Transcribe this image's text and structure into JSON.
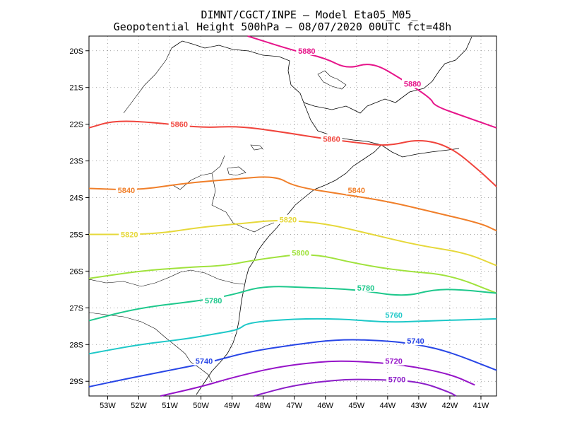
{
  "chart_data": {
    "type": "contour",
    "title_line1": "DIMNT/CGCT/INPE –  Model Eta05_M05_",
    "title_line2": "Geopotential Height 500hPa –  08/07/2020 00UTC fct=48h",
    "x_ticks": [
      "53W",
      "52W",
      "51W",
      "50W",
      "49W",
      "48W",
      "47W",
      "46W",
      "45W",
      "44W",
      "43W",
      "42W",
      "41W"
    ],
    "y_ticks": [
      "20S",
      "21S",
      "22S",
      "23S",
      "24S",
      "25S",
      "26S",
      "27S",
      "28S",
      "29S"
    ],
    "lon_range": [
      -53.6,
      -40.5
    ],
    "lat_range": [
      -29.4,
      -19.6
    ],
    "grid": true,
    "contours": [
      {
        "level": 5880,
        "color": "#e6158a",
        "points": [
          [
            -48.5,
            -19.6
          ],
          [
            -47.0,
            -20.0
          ],
          [
            -46.0,
            -20.2
          ],
          [
            -45.3,
            -20.5
          ],
          [
            -44.5,
            -20.3
          ],
          [
            -43.5,
            -20.8
          ],
          [
            -42.6,
            -21.3
          ],
          [
            -42.5,
            -21.5
          ],
          [
            -41.5,
            -21.8
          ],
          [
            -40.5,
            -22.1
          ]
        ],
        "labels": [
          {
            "text": "5880",
            "lon": -46.6,
            "lat": -20.0
          },
          {
            "text": "5880",
            "lon": -43.2,
            "lat": -20.9
          }
        ]
      },
      {
        "level": 5860,
        "color": "#f0443c",
        "points": [
          [
            -53.6,
            -22.1
          ],
          [
            -52.8,
            -21.9
          ],
          [
            -51.5,
            -21.95
          ],
          [
            -50.0,
            -22.1
          ],
          [
            -48.8,
            -22.05
          ],
          [
            -47.5,
            -22.2
          ],
          [
            -46.0,
            -22.4
          ],
          [
            -45.0,
            -22.5
          ],
          [
            -44.0,
            -22.6
          ],
          [
            -43.0,
            -22.4
          ],
          [
            -42.0,
            -22.6
          ],
          [
            -41.0,
            -23.3
          ],
          [
            -40.5,
            -23.7
          ]
        ],
        "labels": [
          {
            "text": "5860",
            "lon": -50.7,
            "lat": -22.0
          },
          {
            "text": "5860",
            "lon": -45.8,
            "lat": -22.4
          }
        ]
      },
      {
        "level": 5840,
        "color": "#f07f2a",
        "points": [
          [
            -53.6,
            -23.75
          ],
          [
            -52.0,
            -23.8
          ],
          [
            -50.5,
            -23.6
          ],
          [
            -49.0,
            -23.5
          ],
          [
            -47.6,
            -23.4
          ],
          [
            -47.0,
            -23.7
          ],
          [
            -45.5,
            -23.9
          ],
          [
            -44.0,
            -24.1
          ],
          [
            -42.5,
            -24.4
          ],
          [
            -41.0,
            -24.7
          ],
          [
            -40.5,
            -24.9
          ]
        ],
        "labels": [
          {
            "text": "5840",
            "lon": -52.4,
            "lat": -23.8
          },
          {
            "text": "5840",
            "lon": -45.0,
            "lat": -23.8
          }
        ]
      },
      {
        "level": 5820,
        "color": "#e6d83a",
        "points": [
          [
            -53.6,
            -25.0
          ],
          [
            -51.5,
            -25.0
          ],
          [
            -50.0,
            -24.8
          ],
          [
            -48.6,
            -24.7
          ],
          [
            -47.5,
            -24.6
          ],
          [
            -46.0,
            -24.7
          ],
          [
            -44.5,
            -25.0
          ],
          [
            -43.0,
            -25.3
          ],
          [
            -41.5,
            -25.5
          ],
          [
            -40.5,
            -25.85
          ]
        ],
        "labels": [
          {
            "text": "5820",
            "lon": -52.3,
            "lat": -25.0
          },
          {
            "text": "5820",
            "lon": -47.2,
            "lat": -24.6
          }
        ]
      },
      {
        "level": 5800,
        "color": "#a0e23c",
        "points": [
          [
            -53.6,
            -26.2
          ],
          [
            -52.0,
            -26.0
          ],
          [
            -50.5,
            -25.9
          ],
          [
            -49.2,
            -25.85
          ],
          [
            -48.3,
            -25.7
          ],
          [
            -46.5,
            -25.5
          ],
          [
            -45.0,
            -25.8
          ],
          [
            -43.5,
            -26.0
          ],
          [
            -42.0,
            -26.1
          ],
          [
            -40.5,
            -26.6
          ]
        ],
        "labels": [
          {
            "text": "5800",
            "lon": -46.8,
            "lat": -25.5
          }
        ]
      },
      {
        "level": 5780,
        "color": "#1ec88c",
        "points": [
          [
            -53.6,
            -27.35
          ],
          [
            -52.0,
            -27.0
          ],
          [
            -50.0,
            -26.8
          ],
          [
            -49.0,
            -26.65
          ],
          [
            -48.0,
            -26.4
          ],
          [
            -46.5,
            -26.45
          ],
          [
            -45.0,
            -26.5
          ],
          [
            -43.5,
            -26.7
          ],
          [
            -42.5,
            -26.5
          ],
          [
            -41.7,
            -26.5
          ],
          [
            -40.5,
            -26.6
          ]
        ],
        "labels": [
          {
            "text": "5780",
            "lon": -49.6,
            "lat": -26.8
          },
          {
            "text": "5780",
            "lon": -44.7,
            "lat": -26.45
          }
        ]
      },
      {
        "level": 5760,
        "color": "#1ec8c8",
        "points": [
          [
            -53.6,
            -28.25
          ],
          [
            -52.0,
            -28.0
          ],
          [
            -50.5,
            -27.85
          ],
          [
            -49.5,
            -27.7
          ],
          [
            -48.8,
            -27.6
          ],
          [
            -48.5,
            -27.4
          ],
          [
            -47.0,
            -27.3
          ],
          [
            -45.5,
            -27.3
          ],
          [
            -44.0,
            -27.4
          ],
          [
            -42.5,
            -27.35
          ],
          [
            -40.5,
            -27.3
          ]
        ],
        "labels": [
          {
            "text": "5760",
            "lon": -43.8,
            "lat": -27.2
          }
        ]
      },
      {
        "level": 5740,
        "color": "#2846e6",
        "points": [
          [
            -53.6,
            -29.15
          ],
          [
            -52.5,
            -28.95
          ],
          [
            -51.0,
            -28.7
          ],
          [
            -49.8,
            -28.5
          ],
          [
            -48.5,
            -28.2
          ],
          [
            -47.0,
            -28.0
          ],
          [
            -45.5,
            -27.85
          ],
          [
            -44.0,
            -27.9
          ],
          [
            -43.0,
            -28.0
          ],
          [
            -42.0,
            -28.2
          ],
          [
            -40.5,
            -28.7
          ]
        ],
        "labels": [
          {
            "text": "5740",
            "lon": -49.9,
            "lat": -28.45
          },
          {
            "text": "5740",
            "lon": -43.1,
            "lat": -27.9
          }
        ]
      },
      {
        "level": 5720,
        "color": "#9614c8",
        "points": [
          [
            -51.3,
            -29.4
          ],
          [
            -50.0,
            -29.15
          ],
          [
            -49.0,
            -28.9
          ],
          [
            -47.5,
            -28.6
          ],
          [
            -46.0,
            -28.45
          ],
          [
            -45.0,
            -28.45
          ],
          [
            -43.5,
            -28.55
          ],
          [
            -42.0,
            -28.8
          ],
          [
            -41.2,
            -29.1
          ]
        ],
        "labels": [
          {
            "text": "5720",
            "lon": -43.8,
            "lat": -28.45
          }
        ]
      },
      {
        "level": 5700,
        "color": "#8c1ec8",
        "points": [
          [
            -48.3,
            -29.4
          ],
          [
            -47.0,
            -29.1
          ],
          [
            -45.5,
            -28.95
          ],
          [
            -44.5,
            -28.95
          ],
          [
            -43.0,
            -29.0
          ],
          [
            -42.0,
            -29.3
          ],
          [
            -41.8,
            -29.4
          ]
        ],
        "labels": [
          {
            "text": "5700",
            "lon": -43.7,
            "lat": -28.95
          }
        ]
      }
    ]
  }
}
